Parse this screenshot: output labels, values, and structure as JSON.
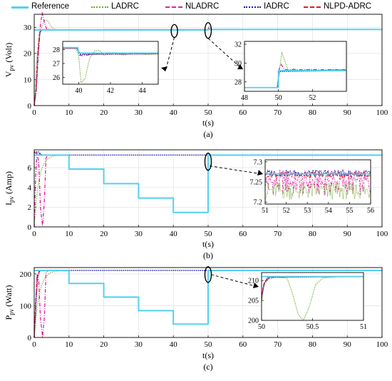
{
  "legend": [
    {
      "name": "Reference",
      "color": "#55d0f0",
      "dash": "solid"
    },
    {
      "name": "LADRC",
      "color": "#6aaa2c",
      "dash": "dotted"
    },
    {
      "name": "NLADRC",
      "color": "#e0209a",
      "dash": "dashdot"
    },
    {
      "name": "IADRC",
      "color": "#1a1aa8",
      "dash": "dotted-dense"
    },
    {
      "name": "NLPD-ADRC",
      "color": "#e01818",
      "dash": "dashed"
    }
  ],
  "chart_data": [
    {
      "type": "line",
      "caption": "(a)",
      "xlabel": "t(s)",
      "ylabel": "V",
      "ylabel_sub": "pv",
      "ylabel_unit": "(Volt)",
      "xlim": [
        0,
        100
      ],
      "ylim": [
        0,
        35
      ],
      "xticks": [
        0,
        10,
        20,
        30,
        40,
        50,
        60,
        70,
        80,
        90,
        100
      ],
      "yticks": [
        0,
        10,
        20,
        30
      ],
      "grid": true,
      "reference": [
        [
          0,
          29
        ],
        [
          50,
          29
        ],
        [
          50.05,
          29.2
        ],
        [
          100,
          29.2
        ]
      ],
      "insets": [
        {
          "xlim": [
            39,
            45
          ],
          "ylim": [
            25.5,
            28.6
          ],
          "xticks": [
            40,
            42,
            44
          ],
          "yticks": [
            26,
            27,
            28
          ]
        },
        {
          "xlim": [
            48,
            54
          ],
          "ylim": [
            27,
            32.3
          ],
          "xticks": [
            48,
            50,
            52
          ],
          "yticks": [
            28,
            30,
            32
          ]
        }
      ]
    },
    {
      "type": "line",
      "caption": "(b)",
      "xlabel": "t(s)",
      "ylabel": "I",
      "ylabel_sub": "pv",
      "ylabel_unit": "(Amp)",
      "xlim": [
        0,
        100
      ],
      "ylim": [
        0,
        7.8
      ],
      "xticks": [
        0,
        10,
        20,
        30,
        40,
        50,
        60,
        70,
        80,
        90,
        100
      ],
      "yticks": [
        0,
        2,
        4,
        6
      ],
      "grid": true,
      "reference": [
        [
          0,
          7.27
        ],
        [
          10,
          7.27
        ],
        [
          10,
          5.85
        ],
        [
          20,
          5.85
        ],
        [
          20,
          4.38
        ],
        [
          30,
          4.38
        ],
        [
          30,
          2.92
        ],
        [
          40,
          2.92
        ],
        [
          40,
          1.46
        ],
        [
          50,
          1.46
        ],
        [
          50,
          7.27
        ],
        [
          100,
          7.27
        ]
      ],
      "insets": [
        {
          "xlim": [
            51,
            56
          ],
          "ylim": [
            7.195,
            7.305
          ],
          "xticks": [
            51,
            52,
            53,
            54,
            55,
            56
          ],
          "yticks": [
            7.2,
            7.25,
            7.3
          ]
        }
      ]
    },
    {
      "type": "line",
      "caption": "(c)",
      "xlabel": "t(s)",
      "ylabel": "P",
      "ylabel_sub": "pv",
      "ylabel_unit": "(Watt)",
      "xlim": [
        0,
        100
      ],
      "ylim": [
        0,
        220
      ],
      "xticks": [
        0,
        10,
        20,
        30,
        40,
        50,
        60,
        70,
        80,
        90,
        100
      ],
      "yticks": [
        0,
        100,
        200
      ],
      "grid": true,
      "reference": [
        [
          0,
          211
        ],
        [
          10,
          211
        ],
        [
          10,
          170
        ],
        [
          20,
          170
        ],
        [
          20,
          127
        ],
        [
          30,
          127
        ],
        [
          30,
          84.5
        ],
        [
          40,
          84.5
        ],
        [
          40,
          42
        ],
        [
          50,
          42
        ],
        [
          50,
          211
        ],
        [
          100,
          211
        ]
      ],
      "insets": [
        {
          "xlim": [
            50,
            51
          ],
          "ylim": [
            200,
            212
          ],
          "xticks": [
            50,
            50.5,
            51
          ],
          "yticks": [
            200,
            205,
            210
          ]
        }
      ]
    }
  ]
}
